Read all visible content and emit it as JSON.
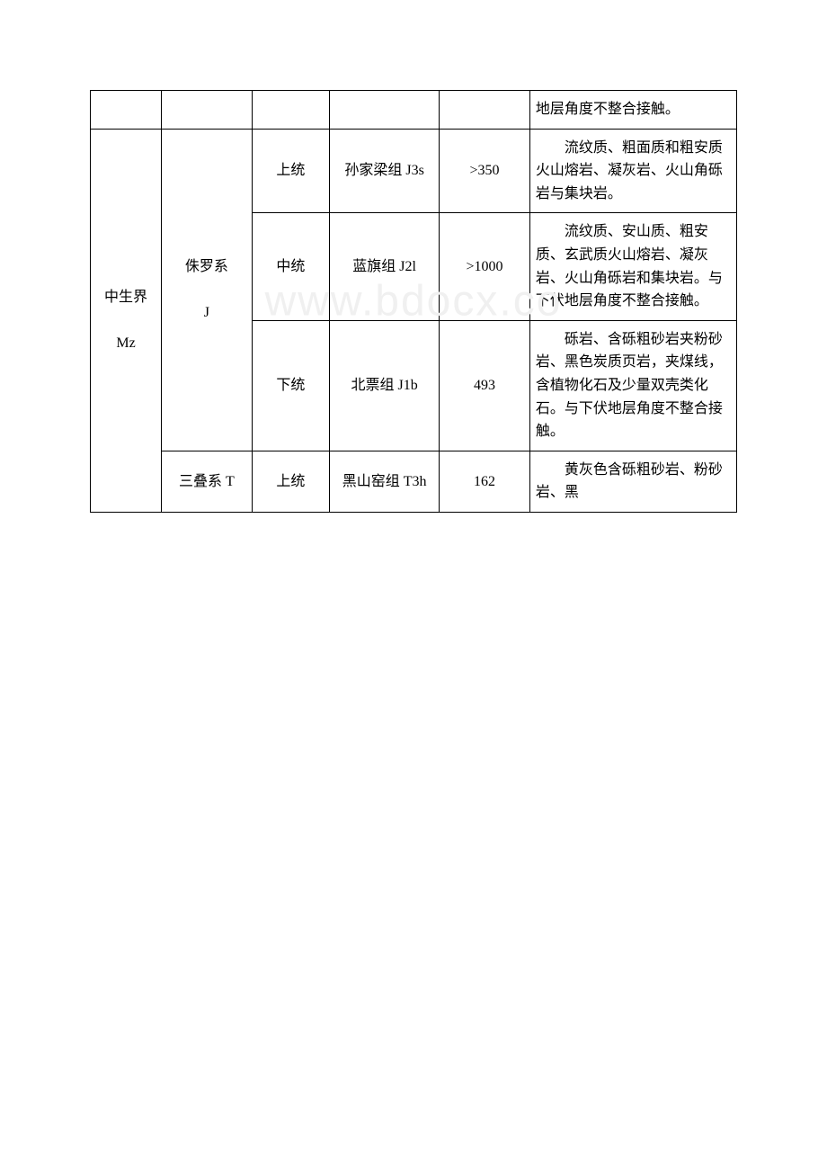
{
  "watermark": "www.bdocx.co",
  "table": {
    "rows": [
      {
        "cells": [
          {
            "text": "",
            "class": "col1"
          },
          {
            "text": "",
            "class": "col2"
          },
          {
            "text": "",
            "class": "col3"
          },
          {
            "text": "",
            "class": "col4"
          },
          {
            "text": "",
            "class": "col5"
          },
          {
            "text": "地层角度不整合接触。",
            "class": "col6"
          }
        ]
      }
    ],
    "era_label": "中生界",
    "era_code": "Mz",
    "system1_label": "侏罗系",
    "system1_code": "J",
    "system2_label": "三叠系 T",
    "row2": {
      "series": "上统",
      "formation": "孙家梁组 J3s",
      "thickness": ">350",
      "description": "　　流纹质、粗面质和粗安质火山熔岩、凝灰岩、火山角砾岩与集块岩。"
    },
    "row3": {
      "series": "中统",
      "formation": "蓝旗组 J2l",
      "thickness": ">1000",
      "description": "　　流纹质、安山质、粗安质、玄武质火山熔岩、凝灰岩、火山角砾岩和集块岩。与下伏地层角度不整合接触。"
    },
    "row4": {
      "series": "下统",
      "formation": "北票组 J1b",
      "thickness": "493",
      "description": "　　砾岩、含砾粗砂岩夹粉砂岩、黑色炭质页岩，夹煤线，含植物化石及少量双壳类化石。与下伏地层角度不整合接触。"
    },
    "row5": {
      "series": "上统",
      "formation": "黑山窑组 T3h",
      "thickness": "162",
      "description": "　　黄灰色含砾粗砂岩、粉砂岩、黑"
    }
  }
}
